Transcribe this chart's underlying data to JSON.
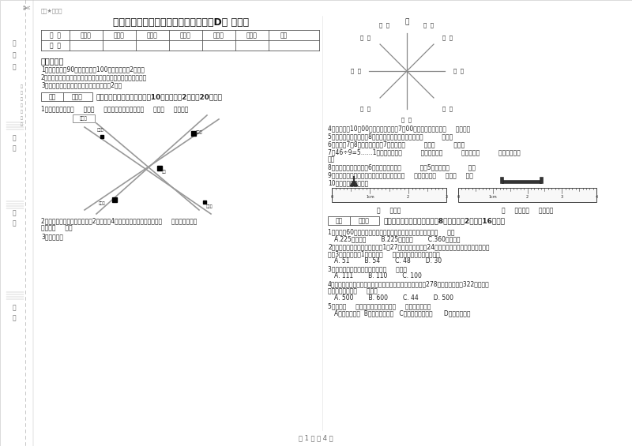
{
  "title": "苏教版三年级数学下学期自我检测试卷D卷 含答案",
  "watermark": "趣题★自用图",
  "score_table_headers": [
    "题  号",
    "填空题",
    "选择题",
    "判断题",
    "计算题",
    "综合题",
    "应用题",
    "总分"
  ],
  "score_table_row": [
    "得  分",
    "",
    "",
    "",
    "",
    "",
    "",
    ""
  ],
  "exam_notes_title": "考试须知：",
  "exam_notes": [
    "1、考试时间：90分钟，满分为100分（含卷面分2分）。",
    "2、请首先按要求在试卷的指定位置填写您的姓名、班级、学号。",
    "3、不要在试卷上乱写乱画，卷面不整洁扣2分。"
  ],
  "section1_title": "一、用心思考，正确填空（共10小题，每题2分，共20分）。",
  "q1": "1、小红家在学校（     ）方（     ）米处；小明家在学校（     ）方（     ）米处。",
  "q2_line1": "2、劳动课上做纸花，红红做了2朵纸花，4朵蓝花，红花占纸花总数的（     ），蓝花占纸花",
  "q2_line2": "总数的（     ）。",
  "q3": "3、填一填。",
  "q4": "4、小林晚上10：00睡觉，第二天早上7：00起床，他一共睡了（     ）小时。",
  "q5": "5、小明从一楼到三楼用8秒，照这样他从一楼到五楼用（          ）秒。",
  "q6": "6、时针在7和8之间，分针指向7，这时是（          ）时（          ）分。",
  "q7_line1": "7、46÷9=5……1中，被除数是（          ），除数是（          ），商是（          ），余数是（",
  "q7_line2": "）。",
  "q8": "8、把一根绳子平均分成6份，每份是它的（          ），5份是它的（          ）。",
  "q9": "9、在进位加法中，不管哪一位上的数相加满（     ），都要向（     ）进（     ）。",
  "q10": "10、量出钉子的长度。",
  "ruler_text1": "（     ）毫米",
  "ruler_text2": "（     ）厘米（     ）毫米。",
  "section2_title": "二、反复比较，慎重选择（共8小题，每题2分，共16分）。",
  "mc1": "1、把一根60厘米的铁丝围城一个正方形，这个正方形的面积是（     ）。",
  "mc1_choices": "A.225平方分米        B.225平方厘米        C.360平方厘米",
  "mc2_line1": "2、学校开设两个兴趣小组，三（1）27人参加书画小组，24人参加棋艺小组，两个小组都参加",
  "mc2_line2": "的有3人，那么三（1）一共有（     ）人参加了书画和棋艺小组。",
  "mc2_choices": "A. 51        B. 54        C. 48        D. 30",
  "mc3": "3、最大的三位数是最大一位数的（     ）倍。",
  "mc3_choices": "A. 111        B. 110        C. 100",
  "mc4_line1": "4、广州新电视塔是广州市目前最高的建筑，它比中信大厦高278米，中信大厦高322米，那么",
  "mc4_line2": "广州新电视塔高（     ）米。",
  "mc4_choices": "A. 500        B. 600        C. 44        D. 500",
  "mc5": "5、明天（     ）会下雨，今天下午我（     ）游遍全世界。",
  "mc5_choices": "A、一定，可能  B、可能，不可能   C、不可能，不可能      D、可能，可能",
  "page_footer": "第 1 页 共 4 页",
  "map_north_label": "北",
  "left_margin_texts": [
    "密",
    "封",
    "线",
    "班",
    "级",
    "姓",
    "名",
    "学",
    "校"
  ],
  "margin_line_labels": [
    "内",
    "不",
    "准",
    "超",
    "出",
    "此",
    "线"
  ]
}
